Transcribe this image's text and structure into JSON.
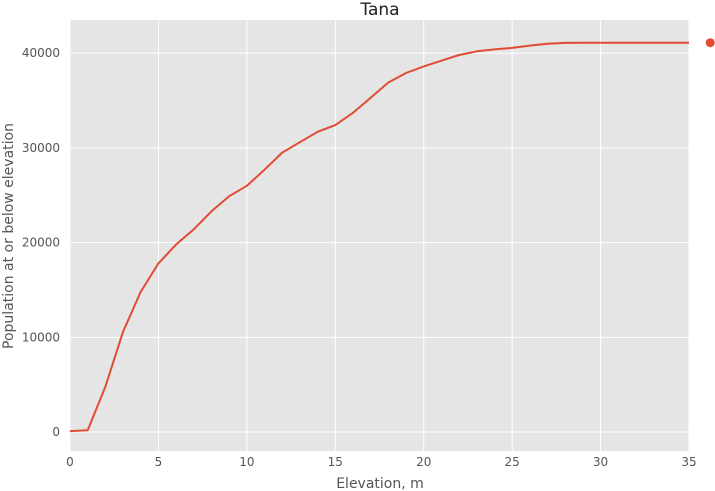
{
  "chart_data": {
    "type": "line",
    "title": "Tana",
    "xlabel": "Elevation, m",
    "ylabel": "Population at or below elevation",
    "xlim": [
      0,
      35
    ],
    "ylim": [
      -2000,
      43500
    ],
    "xticks": [
      0,
      5,
      10,
      15,
      20,
      25,
      30,
      35
    ],
    "yticks": [
      0,
      10000,
      20000,
      30000,
      40000
    ],
    "grid": true,
    "legend": "none",
    "background_color": "#e5e5e5",
    "grid_color": "#ffffff",
    "series": [
      {
        "color": "#e24a33",
        "x": [
          0,
          1,
          2,
          3,
          4,
          5,
          6,
          7,
          8,
          9,
          10,
          11,
          12,
          13,
          14,
          15,
          16,
          17,
          18,
          19,
          20,
          21,
          22,
          23,
          24,
          25,
          26,
          27,
          28,
          29,
          30,
          31,
          32,
          33,
          34,
          35
        ],
        "y": [
          100,
          200,
          4800,
          10600,
          14800,
          17800,
          19800,
          21400,
          23300,
          24900,
          26000,
          27700,
          29500,
          30600,
          31700,
          32400,
          33700,
          35300,
          36900,
          37900,
          38600,
          39200,
          39800,
          40200,
          40400,
          40550,
          40800,
          41000,
          41080,
          41100,
          41100,
          41100,
          41100,
          41100,
          41100,
          41100
        ]
      }
    ],
    "markers": [
      {
        "x": 36.2,
        "y": 41100,
        "color": "#e24a33"
      }
    ]
  }
}
